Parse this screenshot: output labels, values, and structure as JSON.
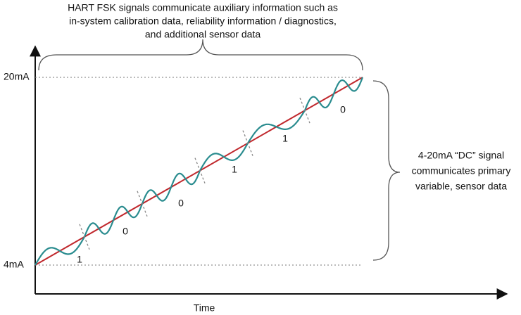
{
  "top_annotation": {
    "lines": [
      "HART FSK signals communicate auxiliary information such as",
      "in-system calibration data, reliability information / diagnostics,",
      "and additional sensor data"
    ]
  },
  "right_annotation": {
    "lines": [
      "4-20mA “DC” signal",
      "communicates primary",
      "variable, sensor data"
    ]
  },
  "axes": {
    "y_labels": [
      "20mA",
      "4mA"
    ],
    "x_label": "Time"
  },
  "bits": [
    "1",
    "0",
    "0",
    "1",
    "1",
    "0"
  ]
}
